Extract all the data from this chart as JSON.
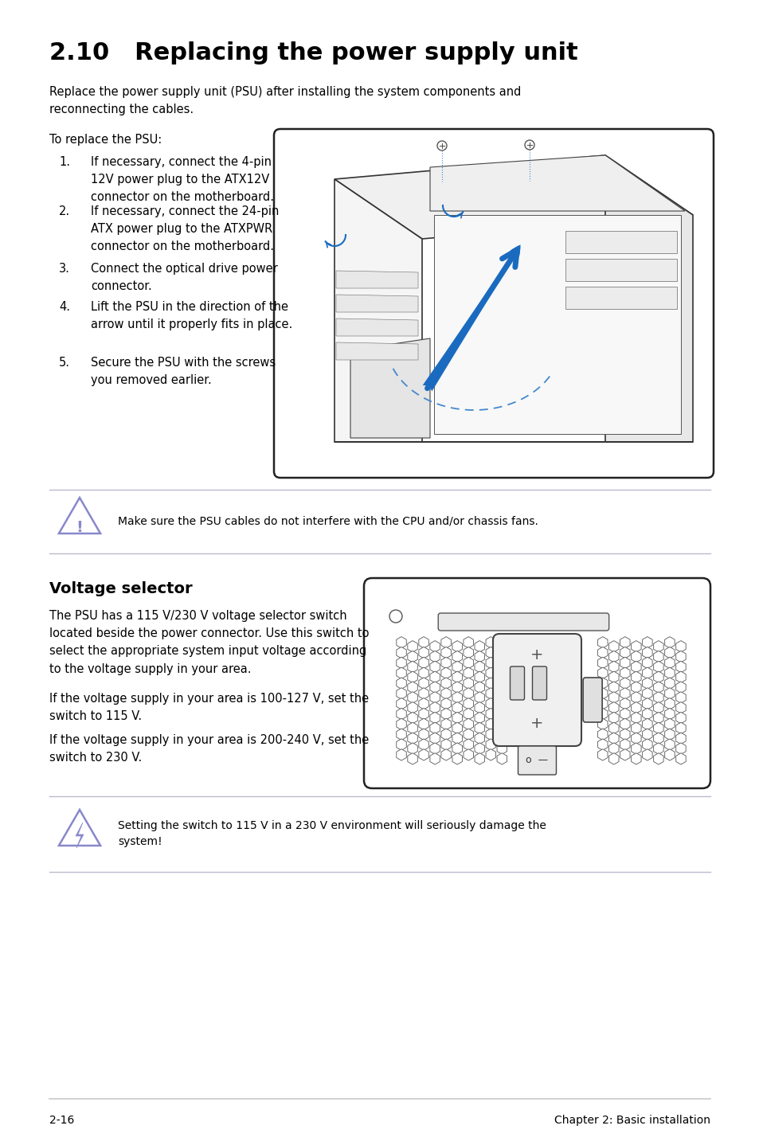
{
  "title": "2.10   Replacing the power supply unit",
  "intro_text": "Replace the power supply unit (PSU) after installing the system components and\nreconnecting the cables.",
  "to_replace": "To replace the PSU:",
  "steps": [
    "If necessary, connect the 4-pin\n12V power plug to the ATX12V\nconnector on the motherboard.",
    "If necessary, connect the 24-pin\nATX power plug to the ATXPWR\nconnector on the motherboard.",
    "Connect the optical drive power\nconnector.",
    "Lift the PSU in the direction of the\narrow until it properly fits in place.",
    "Secure the PSU with the screws\nyou removed earlier."
  ],
  "warning1": "Make sure the PSU cables do not interfere with the CPU and/or chassis fans.",
  "voltage_title": "Voltage selector",
  "voltage_text1": "The PSU has a 115 V/230 V voltage selector switch\nlocated beside the power connector. Use this switch to\nselect the appropriate system input voltage according\nto the voltage supply in your area.",
  "voltage_text2": "If the voltage supply in your area is 100-127 V, set the\nswitch to 115 V.",
  "voltage_text3": "If the voltage supply in your area is 200-240 V, set the\nswitch to 230 V.",
  "warning2": "Setting the switch to 115 V in a 230 V environment will seriously damage the\nsystem!",
  "footer_left": "2-16",
  "footer_right": "Chapter 2: Basic installation",
  "bg_color": "#ffffff",
  "text_color": "#000000",
  "title_color": "#000000",
  "section_title_color": "#000000",
  "line_color": "#c8c8c8",
  "warn_triangle_color": "#8888cc",
  "warn_line_color": "#bbbbcc"
}
